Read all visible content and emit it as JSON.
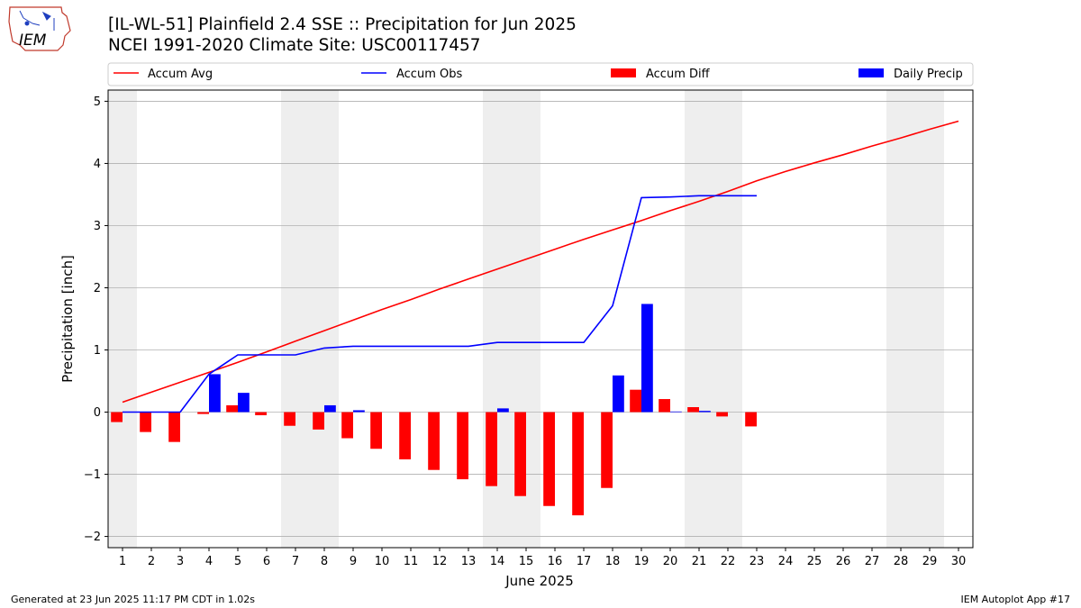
{
  "header": {
    "title_line1": "[IL-WL-51] Plainfield 2.4 SSE :: Precipitation for Jun 2025",
    "title_line2": "NCEI 1991-2020 Climate Site: USC00117457",
    "logo_text": "IEM"
  },
  "footer": {
    "generated": "Generated at 23 Jun 2025 11:17 PM CDT in 1.02s",
    "app": "IEM Autoplot App #17"
  },
  "chart_data": {
    "type": "bar",
    "xlabel": "June 2025",
    "ylabel": "Precipitation [inch]",
    "xlim": [
      0.5,
      30.5
    ],
    "ylim": [
      -2.18,
      5.18
    ],
    "yticks": [
      -2,
      -1,
      0,
      1,
      2,
      3,
      4,
      5
    ],
    "xticks": [
      1,
      2,
      3,
      4,
      5,
      6,
      7,
      8,
      9,
      10,
      11,
      12,
      13,
      14,
      15,
      16,
      17,
      18,
      19,
      20,
      21,
      22,
      23,
      24,
      25,
      26,
      27,
      28,
      29,
      30
    ],
    "grid": "y",
    "legend_position": "top",
    "weekend_shading": [
      [
        0.5,
        1.5
      ],
      [
        6.5,
        8.5
      ],
      [
        13.5,
        15.5
      ],
      [
        20.5,
        22.5
      ],
      [
        27.5,
        29.5
      ]
    ],
    "colors": {
      "accum_avg": "#ff0000",
      "accum_obs": "#0000ff",
      "accum_diff": "#ff0000",
      "daily_precip": "#0000ff",
      "weekend": "#eeeeee",
      "grid": "#b0b0b0"
    },
    "series": [
      {
        "name": "Accum Avg",
        "kind": "line",
        "x": [
          1,
          2,
          3,
          4,
          5,
          6,
          7,
          8,
          9,
          10,
          11,
          12,
          13,
          14,
          15,
          16,
          17,
          18,
          19,
          20,
          21,
          22,
          23,
          24,
          25,
          26,
          27,
          28,
          29,
          30
        ],
        "values": [
          0.16,
          0.32,
          0.48,
          0.64,
          0.8,
          0.97,
          1.14,
          1.31,
          1.48,
          1.65,
          1.81,
          1.98,
          2.14,
          2.3,
          2.46,
          2.62,
          2.78,
          2.93,
          3.08,
          3.24,
          3.39,
          3.55,
          3.72,
          3.87,
          4.01,
          4.14,
          4.28,
          4.41,
          4.55,
          4.68
        ]
      },
      {
        "name": "Accum Obs",
        "kind": "line",
        "x": [
          1,
          2,
          3,
          4,
          5,
          6,
          7,
          8,
          9,
          10,
          11,
          12,
          13,
          14,
          15,
          16,
          17,
          18,
          19,
          20,
          21,
          22,
          23
        ],
        "values": [
          0.0,
          0.0,
          0.0,
          0.61,
          0.92,
          0.92,
          0.92,
          1.03,
          1.06,
          1.06,
          1.06,
          1.06,
          1.06,
          1.12,
          1.12,
          1.12,
          1.12,
          1.71,
          3.45,
          3.46,
          3.48,
          3.48,
          3.48
        ]
      },
      {
        "name": "Accum Diff",
        "kind": "bar",
        "x": [
          1,
          2,
          3,
          4,
          5,
          6,
          7,
          8,
          9,
          10,
          11,
          12,
          13,
          14,
          15,
          16,
          17,
          18,
          19,
          20,
          21,
          22,
          23
        ],
        "values": [
          -0.16,
          -0.32,
          -0.48,
          -0.03,
          0.11,
          -0.05,
          -0.22,
          -0.28,
          -0.42,
          -0.59,
          -0.76,
          -0.93,
          -1.08,
          -1.19,
          -1.35,
          -1.51,
          -1.66,
          -1.22,
          0.36,
          0.21,
          0.08,
          -0.07,
          -0.23
        ]
      },
      {
        "name": "Daily Precip",
        "kind": "bar",
        "x": [
          1,
          2,
          3,
          4,
          5,
          6,
          7,
          8,
          9,
          10,
          11,
          12,
          13,
          14,
          15,
          16,
          17,
          18,
          19,
          20,
          21,
          22,
          23
        ],
        "values": [
          0.0,
          0.0,
          0.0,
          0.61,
          0.31,
          0.0,
          0.0,
          0.11,
          0.03,
          0.0,
          0.0,
          0.0,
          0.0,
          0.06,
          0.0,
          0.0,
          0.0,
          0.59,
          1.74,
          0.01,
          0.02,
          0.0,
          0.0
        ]
      }
    ]
  }
}
